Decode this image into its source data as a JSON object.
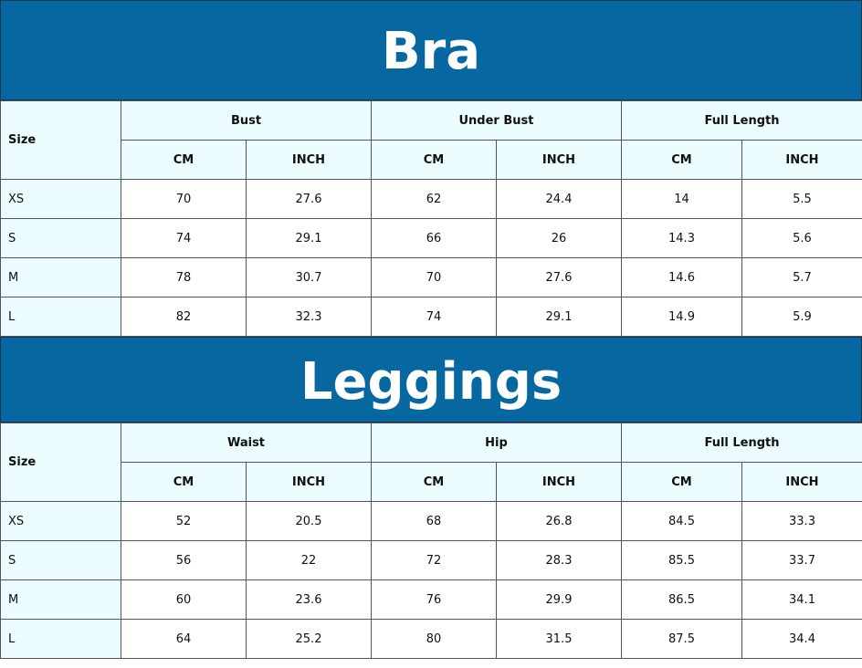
{
  "sections": [
    {
      "title": "Bra",
      "size_label": "Size",
      "groups": [
        "Bust",
        "Under Bust",
        "Full Length"
      ],
      "units": [
        "CM",
        "INCH"
      ],
      "rows": [
        {
          "size": "XS",
          "values": [
            "70",
            "27.6",
            "62",
            "24.4",
            "14",
            "5.5"
          ]
        },
        {
          "size": "S",
          "values": [
            "74",
            "29.1",
            "66",
            "26",
            "14.3",
            "5.6"
          ]
        },
        {
          "size": "M",
          "values": [
            "78",
            "30.7",
            "70",
            "27.6",
            "14.6",
            "5.7"
          ]
        },
        {
          "size": "L",
          "values": [
            "82",
            "32.3",
            "74",
            "29.1",
            "14.9",
            "5.9"
          ]
        }
      ]
    },
    {
      "title": "Leggings",
      "size_label": "Size",
      "groups": [
        "Waist",
        "Hip",
        "Full Length"
      ],
      "units": [
        "CM",
        "INCH"
      ],
      "rows": [
        {
          "size": "XS",
          "values": [
            "52",
            "20.5",
            "68",
            "26.8",
            "84.5",
            "33.3"
          ]
        },
        {
          "size": "S",
          "values": [
            "56",
            "22",
            "72",
            "28.3",
            "85.5",
            "33.7"
          ]
        },
        {
          "size": "M",
          "values": [
            "60",
            "23.6",
            "76",
            "29.9",
            "86.5",
            "34.1"
          ]
        },
        {
          "size": "L",
          "values": [
            "64",
            "25.2",
            "80",
            "31.5",
            "87.5",
            "34.4"
          ]
        }
      ]
    }
  ],
  "colors": {
    "banner": "#0767a0",
    "header_bg": "#ebfdfe"
  }
}
